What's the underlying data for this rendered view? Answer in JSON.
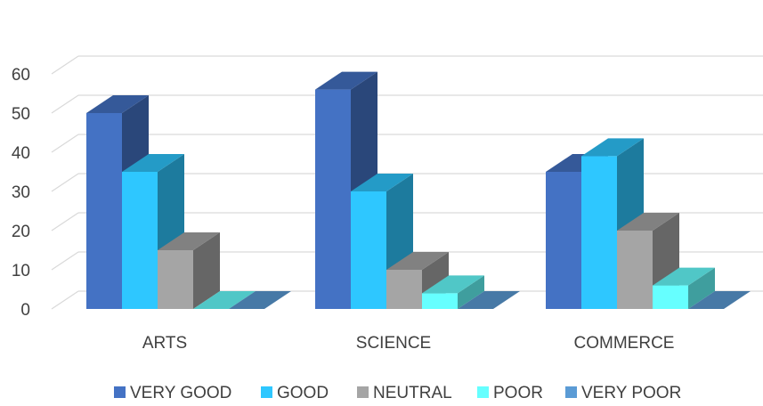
{
  "chart_data": {
    "type": "bar",
    "style": "3d-clustered-column",
    "categories": [
      "ARTS",
      "SCIENCE",
      "COMMERCE"
    ],
    "series": [
      {
        "name": "VERY GOOD",
        "values": [
          50,
          56,
          35
        ],
        "color": "#4472C4"
      },
      {
        "name": "GOOD",
        "values": [
          35,
          30,
          39
        ],
        "color": "#2EC7FF"
      },
      {
        "name": "NEUTRAL",
        "values": [
          15,
          10,
          20
        ],
        "color": "#A5A5A5"
      },
      {
        "name": "POOR",
        "values": [
          0,
          4,
          6
        ],
        "color": "#66FFFF"
      },
      {
        "name": "VERY POOR",
        "values": [
          0,
          0,
          0
        ],
        "color": "#5B9BD5"
      }
    ],
    "y_ticks": [
      "0",
      "10",
      "20",
      "30",
      "40",
      "50",
      "60"
    ],
    "ylim": [
      0,
      60
    ],
    "grid": true,
    "legend_position": "bottom",
    "title": "",
    "xlabel": "",
    "ylabel": ""
  }
}
